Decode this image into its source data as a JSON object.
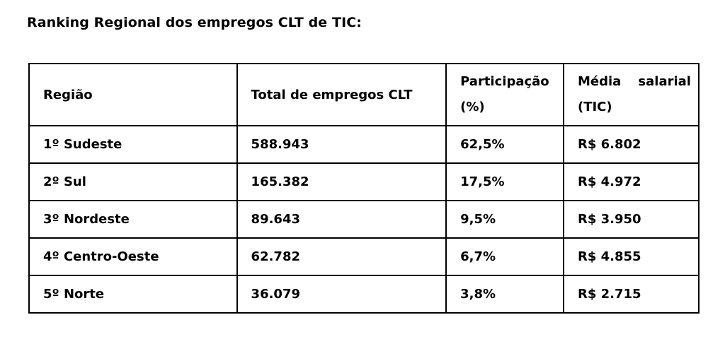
{
  "title": "Ranking Regional dos empregos CLT de TIC:",
  "table": {
    "headers": {
      "regiao": "Região",
      "total": "Total de empregos CLT",
      "participacao_line1": "Participação",
      "participacao_line2": "(%)",
      "media_word1": "Média",
      "media_word2": "salarial",
      "media_line2": "(TIC)"
    },
    "rows": [
      {
        "regiao": "1º Sudeste",
        "total": "588.943",
        "participacao": "62,5%",
        "media": "R$ 6.802"
      },
      {
        "regiao": "2º Sul",
        "total": "165.382",
        "participacao": "17,5%",
        "media": "R$ 4.972"
      },
      {
        "regiao": "3º Nordeste",
        "total": "89.643",
        "participacao": "9,5%",
        "media": "R$ 3.950"
      },
      {
        "regiao": "4º Centro-Oeste",
        "total": "62.782",
        "participacao": "6,7%",
        "media": "R$ 4.855"
      },
      {
        "regiao": "5º Norte",
        "total": "36.079",
        "participacao": "3,8%",
        "media": "R$ 2.715"
      }
    ]
  }
}
